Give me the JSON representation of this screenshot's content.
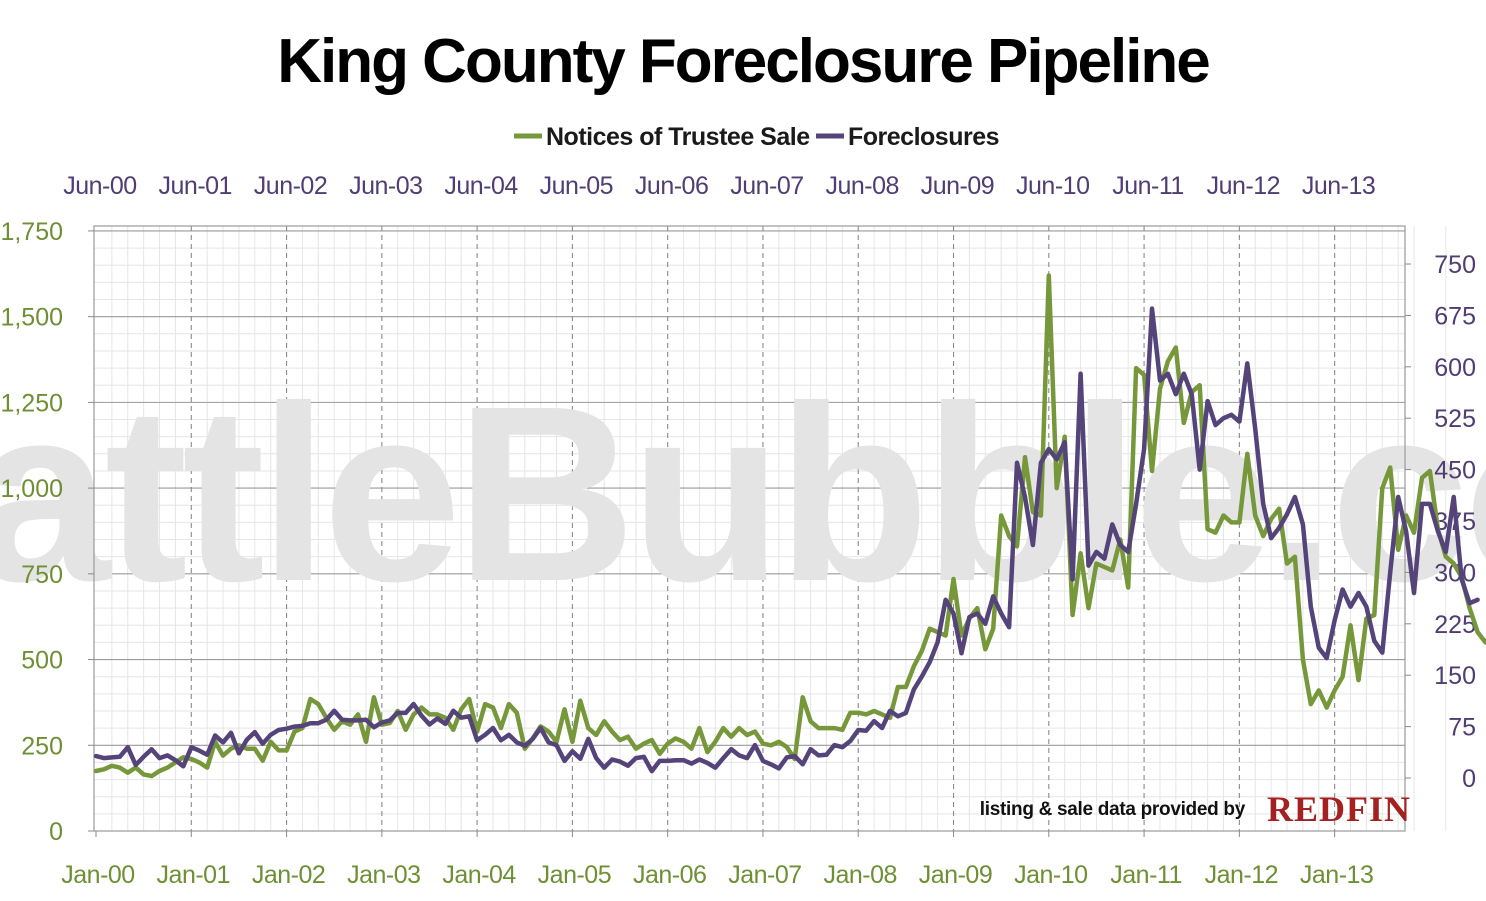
{
  "watermark": "SeattleBubble.com",
  "credit": {
    "text": "listing & sale data provided by",
    "logo": "REDFIN"
  },
  "colors": {
    "nts": "#77983a",
    "foreclosures": "#55447a",
    "left_axis": "#6f8f35",
    "right_axis": "#4f3d73",
    "logo": "#a32121"
  },
  "chart_data": {
    "type": "line",
    "title": "King County Foreclosure Pipeline",
    "legend_position": "top",
    "grid": true,
    "left_axis": {
      "range": [
        0,
        1750
      ],
      "ticks": [
        "0",
        "250",
        "500",
        "750",
        "1,000",
        "1,250",
        "1,500",
        "1,750"
      ]
    },
    "right_axis": {
      "range": [
        0,
        750
      ],
      "ticks": [
        "0",
        "75",
        "150",
        "225",
        "300",
        "375",
        "450",
        "525",
        "600",
        "675",
        "750"
      ]
    },
    "bottom_axis": {
      "ticks": [
        "Jan-00",
        "Jan-01",
        "Jan-02",
        "Jan-03",
        "Jan-04",
        "Jan-05",
        "Jan-06",
        "Jan-07",
        "Jan-08",
        "Jan-09",
        "Jan-10",
        "Jan-11",
        "Jan-12",
        "Jan-13"
      ]
    },
    "top_axis": {
      "ticks": [
        "Jun-00",
        "Jun-01",
        "Jun-02",
        "Jun-03",
        "Jun-04",
        "Jun-05",
        "Jun-06",
        "Jun-07",
        "Jun-08",
        "Jun-09",
        "Jun-10",
        "Jun-11",
        "Jun-12",
        "Jun-13"
      ]
    },
    "x_start": "2000-01",
    "series": [
      {
        "name": "Notices of Trustee Sale",
        "axis": "left",
        "values": [
          175,
          180,
          190,
          185,
          170,
          185,
          165,
          160,
          175,
          185,
          200,
          215,
          210,
          200,
          185,
          260,
          220,
          240,
          250,
          240,
          240,
          205,
          260,
          235,
          235,
          290,
          300,
          385,
          370,
          330,
          295,
          320,
          310,
          340,
          260,
          390,
          310,
          315,
          350,
          295,
          340,
          360,
          340,
          340,
          330,
          295,
          355,
          385,
          290,
          370,
          360,
          300,
          370,
          345,
          240,
          270,
          305,
          290,
          260,
          355,
          260,
          380,
          300,
          280,
          320,
          290,
          265,
          275,
          240,
          255,
          265,
          225,
          255,
          270,
          260,
          240,
          300,
          230,
          260,
          300,
          275,
          300,
          280,
          290,
          255,
          250,
          260,
          245,
          210,
          390,
          320,
          300,
          300,
          300,
          295,
          345,
          345,
          340,
          350,
          340,
          330,
          420,
          420,
          480,
          525,
          590,
          580,
          570,
          735,
          570,
          620,
          650,
          530,
          590,
          920,
          860,
          830,
          1090,
          930,
          920,
          1620,
          1000,
          1150,
          630,
          810,
          650,
          780,
          770,
          760,
          850,
          710,
          1350,
          1330,
          1050,
          1290,
          1370,
          1410,
          1190,
          1280,
          1300,
          880,
          870,
          920,
          900,
          900,
          1100,
          920,
          860,
          910,
          940,
          780,
          800,
          500,
          370,
          410,
          360,
          410,
          450,
          600,
          440,
          620,
          630,
          1000,
          1060,
          820,
          920,
          870,
          1030,
          1050,
          880,
          800,
          780,
          740,
          650,
          580,
          550,
          580,
          570
        ]
      },
      {
        "name": "Foreclosures",
        "axis": "right",
        "values": [
          32,
          29,
          30,
          31,
          45,
          19,
          31,
          42,
          29,
          33,
          26,
          17,
          45,
          40,
          34,
          62,
          52,
          66,
          36,
          56,
          67,
          50,
          63,
          70,
          72,
          75,
          76,
          80,
          80,
          85,
          98,
          85,
          84,
          84,
          85,
          74,
          81,
          84,
          95,
          95,
          108,
          91,
          78,
          87,
          79,
          98,
          88,
          90,
          55,
          63,
          73,
          55,
          63,
          52,
          47,
          57,
          73,
          52,
          48,
          25,
          39,
          28,
          57,
          29,
          15,
          27,
          24,
          18,
          29,
          31,
          10,
          25,
          25,
          26,
          26,
          21,
          27,
          22,
          15,
          29,
          42,
          33,
          29,
          48,
          25,
          20,
          14,
          30,
          32,
          20,
          42,
          33,
          34,
          48,
          45,
          54,
          70,
          69,
          83,
          73,
          98,
          90,
          95,
          129,
          148,
          169,
          198,
          260,
          240,
          182,
          235,
          240,
          225,
          265,
          240,
          220,
          460,
          410,
          340,
          460,
          480,
          465,
          490,
          290,
          590,
          310,
          330,
          320,
          370,
          340,
          330,
          400,
          480,
          685,
          580,
          590,
          560,
          590,
          560,
          450,
          550,
          515,
          525,
          530,
          520,
          605,
          510,
          400,
          350,
          365,
          385,
          410,
          370,
          250,
          190,
          175,
          230,
          275,
          250,
          270,
          250,
          200,
          183,
          300,
          410,
          360,
          270,
          400,
          400,
          360,
          330,
          410,
          290,
          255,
          260
        ]
      }
    ]
  }
}
